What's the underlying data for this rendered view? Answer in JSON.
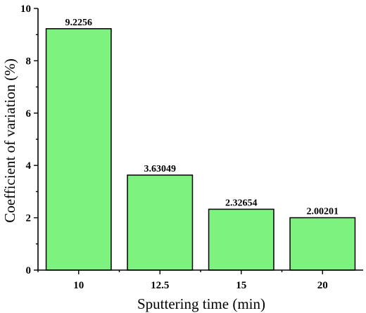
{
  "chart_data": {
    "type": "bar",
    "title": "",
    "xlabel": "Sputtering time (min)",
    "ylabel": "Coefficient of variation (%)",
    "categories": [
      "10",
      "12.5",
      "15",
      "20"
    ],
    "values": [
      9.2256,
      3.63049,
      2.32654,
      2.00201
    ],
    "data_labels": [
      "9.2256",
      "3.63049",
      "2.32654",
      "2.00201"
    ],
    "ylim": [
      0,
      10
    ],
    "yticks": [
      0,
      2,
      4,
      6,
      8,
      10
    ],
    "bar_color": "#7ef27e",
    "grid": false,
    "legend": "none"
  }
}
